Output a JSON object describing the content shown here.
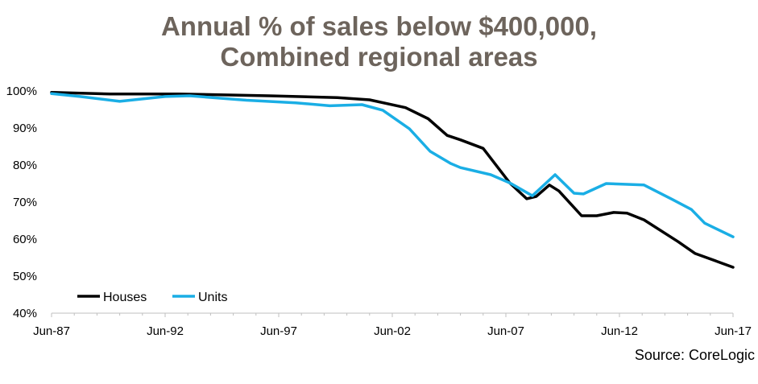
{
  "chart_data": {
    "type": "line",
    "title": [
      "Annual % of sales below $400,000,",
      "Combined regional areas"
    ],
    "source": "Source: CoreLogic",
    "xlabel": "",
    "ylabel": "",
    "ylim": [
      40,
      100
    ],
    "xlim": [
      "1987-06",
      "2017-06"
    ],
    "y_ticks": [
      "40%",
      "50%",
      "60%",
      "70%",
      "80%",
      "90%",
      "100%"
    ],
    "x_ticks": [
      "Jun-87",
      "Jun-92",
      "Jun-97",
      "Jun-02",
      "Jun-07",
      "Jun-12",
      "Jun-17"
    ],
    "grid": false,
    "legend_position": "bottom-left",
    "series": [
      {
        "name": "Houses",
        "color": "#000000",
        "points": [
          [
            "1987-06",
            99.6
          ],
          [
            "1990-01",
            99.2
          ],
          [
            "1993-01",
            99.2
          ],
          [
            "1997-01",
            98.7
          ],
          [
            "2000-01",
            98.2
          ],
          [
            "2001-06",
            97.6
          ],
          [
            "2003-01",
            95.5
          ],
          [
            "2004-01",
            92.5
          ],
          [
            "2004-11",
            88.0
          ],
          [
            "2005-06",
            86.8
          ],
          [
            "2006-06",
            84.5
          ],
          [
            "2007-08",
            75.2
          ],
          [
            "2008-05",
            70.9
          ],
          [
            "2008-10",
            71.5
          ],
          [
            "2009-05",
            74.6
          ],
          [
            "2009-10",
            73.0
          ],
          [
            "2010-10",
            66.3
          ],
          [
            "2011-06",
            66.3
          ],
          [
            "2012-03",
            67.2
          ],
          [
            "2012-10",
            67.0
          ],
          [
            "2013-07",
            65.2
          ],
          [
            "2015-01",
            59.3
          ],
          [
            "2015-10",
            56.1
          ],
          [
            "2016-10",
            53.9
          ],
          [
            "2017-06",
            52.4
          ]
        ]
      },
      {
        "name": "Units",
        "color": "#1aaee5",
        "points": [
          [
            "1987-06",
            99.3
          ],
          [
            "1988-09",
            98.5
          ],
          [
            "1990-06",
            97.2
          ],
          [
            "1992-06",
            98.5
          ],
          [
            "1993-07",
            98.7
          ],
          [
            "1996-01",
            97.5
          ],
          [
            "1998-03",
            96.8
          ],
          [
            "1999-09",
            96.0
          ],
          [
            "2001-02",
            96.3
          ],
          [
            "2002-01",
            94.8
          ],
          [
            "2003-03",
            89.8
          ],
          [
            "2004-02",
            83.7
          ],
          [
            "2005-01",
            80.4
          ],
          [
            "2005-06",
            79.3
          ],
          [
            "2006-10",
            77.4
          ],
          [
            "2007-08",
            75.2
          ],
          [
            "2008-08",
            71.7
          ],
          [
            "2009-08",
            77.4
          ],
          [
            "2010-06",
            72.4
          ],
          [
            "2010-11",
            72.2
          ],
          [
            "2011-11",
            75.0
          ],
          [
            "2013-07",
            74.6
          ],
          [
            "2014-10",
            70.7
          ],
          [
            "2015-08",
            68.0
          ],
          [
            "2016-03",
            64.3
          ],
          [
            "2017-06",
            60.6
          ]
        ]
      }
    ]
  }
}
